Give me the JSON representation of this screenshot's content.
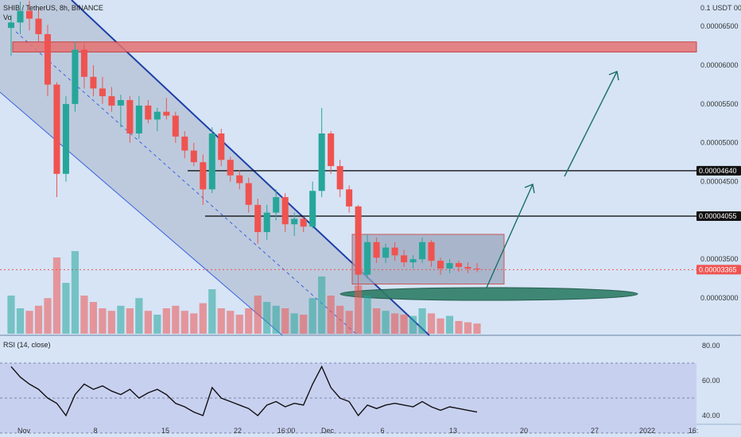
{
  "header": {
    "symbol_line": "SHIB / TetherUS, 8h, BINANCE",
    "vol_label": "Vo"
  },
  "colors": {
    "up": "#26a69a",
    "down": "#ef5350",
    "bg": "#d6e4f6",
    "channel": "#1e3fa8",
    "resistance_zone": "#e57373",
    "support_ellipse": "#2e7d67",
    "arrow": "#1b6e66",
    "rsi": "#111111",
    "rsi_band": "#c6cdf0"
  },
  "chart_data": [
    {
      "type": "candlestick",
      "title": "SHIB / TetherUS, 8h, BINANCE",
      "unit_label": "0.1 USDT 00",
      "price_axis_ticks": [
        "0.00006500",
        "0.00006000",
        "0.00005500",
        "0.00005000",
        "0.00004500",
        "0.00003500",
        "0.00003000"
      ],
      "ylim": [
        2.54e-05,
        6.84e-05
      ],
      "time_axis_ticks": [
        "Nov",
        "8",
        "15",
        "22",
        "16:00",
        "Dec",
        "6",
        "13",
        "20",
        "27",
        "2022",
        "16:"
      ],
      "price_labels": [
        {
          "value": "0.00004640",
          "price": 4.64e-05,
          "style": "dark"
        },
        {
          "value": "0.00004055",
          "price": 4.055e-05,
          "style": "dark"
        },
        {
          "value": "0.00003365",
          "price": 3.365e-05,
          "style": "red"
        }
      ],
      "resistance_zone": [
        6.17e-05,
        6.3e-05
      ],
      "consolidation_box": {
        "price_range": [
          3.18e-05,
          3.82e-05
        ]
      },
      "candles_ohlc_approx": [
        [
          6.48e-05,
          6.65e-05,
          6.12e-05,
          6.55e-05
        ],
        [
          6.55e-05,
          6.82e-05,
          6.4e-05,
          6.7e-05
        ],
        [
          6.7e-05,
          6.83e-05,
          6.45e-05,
          6.6e-05
        ],
        [
          6.6e-05,
          6.72e-05,
          6.3e-05,
          6.4e-05
        ],
        [
          6.4e-05,
          6.52e-05,
          5.6e-05,
          5.75e-05
        ],
        [
          5.75e-05,
          5.78e-05,
          4.3e-05,
          4.6e-05
        ],
        [
          4.6e-05,
          5.6e-05,
          4.5e-05,
          5.5e-05
        ],
        [
          5.5e-05,
          6.3e-05,
          5.4e-05,
          6.2e-05
        ],
        [
          6.2e-05,
          6.28e-05,
          5.7e-05,
          5.85e-05
        ],
        [
          5.85e-05,
          6e-05,
          5.6e-05,
          5.7e-05
        ],
        [
          5.7e-05,
          5.85e-05,
          5.5e-05,
          5.6e-05
        ],
        [
          5.6e-05,
          5.72e-05,
          5.4e-05,
          5.48e-05
        ],
        [
          5.48e-05,
          5.62e-05,
          5.2e-05,
          5.55e-05
        ],
        [
          5.55e-05,
          5.6e-05,
          5e-05,
          5.12e-05
        ],
        [
          5.12e-05,
          5.6e-05,
          5.05e-05,
          5.48e-05
        ],
        [
          5.48e-05,
          5.55e-05,
          5.25e-05,
          5.3e-05
        ],
        [
          5.3e-05,
          5.45e-05,
          5.15e-05,
          5.4e-05
        ],
        [
          5.4e-05,
          5.58e-05,
          5.3e-05,
          5.35e-05
        ],
        [
          5.35e-05,
          5.4e-05,
          5e-05,
          5.08e-05
        ],
        [
          5.08e-05,
          5.15e-05,
          4.8e-05,
          4.9e-05
        ],
        [
          4.9e-05,
          5e-05,
          4.7e-05,
          4.75e-05
        ],
        [
          4.75e-05,
          4.85e-05,
          4.2e-05,
          4.4e-05
        ],
        [
          4.4e-05,
          5.2e-05,
          4.35e-05,
          5.12e-05
        ],
        [
          5.12e-05,
          5.18e-05,
          4.7e-05,
          4.78e-05
        ],
        [
          4.78e-05,
          4.82e-05,
          4.5e-05,
          4.58e-05
        ],
        [
          4.58e-05,
          4.65e-05,
          4.4e-05,
          4.48e-05
        ],
        [
          4.48e-05,
          4.55e-05,
          4.1e-05,
          4.2e-05
        ],
        [
          4.2e-05,
          4.28e-05,
          3.7e-05,
          3.85e-05
        ],
        [
          3.85e-05,
          4.2e-05,
          3.75e-05,
          4.1e-05
        ],
        [
          4.1e-05,
          4.4e-05,
          4e-05,
          4.3e-05
        ],
        [
          4.3e-05,
          4.35e-05,
          3.85e-05,
          3.95e-05
        ],
        [
          3.95e-05,
          4.1e-05,
          3.8e-05,
          4.02e-05
        ],
        [
          4.02e-05,
          4.05e-05,
          3.85e-05,
          3.92e-05
        ],
        [
          3.92e-05,
          4.5e-05,
          3.9e-05,
          4.38e-05
        ],
        [
          4.38e-05,
          5.45e-05,
          4.3e-05,
          5.12e-05
        ],
        [
          5.12e-05,
          5.15e-05,
          4.6e-05,
          4.7e-05
        ],
        [
          4.7e-05,
          4.78e-05,
          4.3e-05,
          4.4e-05
        ],
        [
          4.4e-05,
          4.45e-05,
          4.1e-05,
          4.18e-05
        ],
        [
          4.18e-05,
          4.2e-05,
          3.1e-05,
          3.3e-05
        ],
        [
          3.3e-05,
          3.82e-05,
          3.25e-05,
          3.72e-05
        ],
        [
          3.72e-05,
          3.78e-05,
          3.45e-05,
          3.52e-05
        ],
        [
          3.52e-05,
          3.7e-05,
          3.45e-05,
          3.65e-05
        ],
        [
          3.65e-05,
          3.72e-05,
          3.48e-05,
          3.55e-05
        ],
        [
          3.55e-05,
          3.62e-05,
          3.4e-05,
          3.46e-05
        ],
        [
          3.46e-05,
          3.55e-05,
          3.38e-05,
          3.5e-05
        ],
        [
          3.5e-05,
          3.78e-05,
          3.45e-05,
          3.72e-05
        ],
        [
          3.72e-05,
          3.75e-05,
          3.4e-05,
          3.48e-05
        ],
        [
          3.48e-05,
          3.52e-05,
          3.3e-05,
          3.38e-05
        ],
        [
          3.38e-05,
          3.5e-05,
          3.32e-05,
          3.45e-05
        ],
        [
          3.45e-05,
          3.48e-05,
          3.34e-05,
          3.4e-05
        ],
        [
          3.4e-05,
          3.46e-05,
          3.32e-05,
          3.38e-05
        ],
        [
          3.38e-05,
          3.45e-05,
          3.33e-05,
          3.37e-05
        ]
      ],
      "volume_approx": [
        30,
        20,
        18,
        22,
        28,
        60,
        40,
        65,
        30,
        25,
        20,
        18,
        22,
        20,
        28,
        18,
        15,
        20,
        22,
        18,
        16,
        24,
        35,
        20,
        18,
        15,
        20,
        30,
        25,
        22,
        20,
        16,
        15,
        28,
        45,
        30,
        22,
        18,
        38,
        30,
        20,
        18,
        16,
        15,
        14,
        20,
        16,
        12,
        14,
        10,
        9,
        8
      ]
    },
    {
      "type": "line",
      "title": "RSI (14, close)",
      "ylim": [
        35,
        85
      ],
      "y_ticks": [
        80,
        60,
        40
      ],
      "band": [
        30,
        70
      ],
      "values_approx": [
        68,
        62,
        58,
        55,
        50,
        47,
        40,
        52,
        58,
        55,
        57,
        54,
        52,
        55,
        50,
        53,
        55,
        52,
        47,
        45,
        42,
        40,
        56,
        50,
        48,
        46,
        44,
        40,
        46,
        48,
        45,
        47,
        46,
        58,
        68,
        56,
        50,
        48,
        40,
        46,
        44,
        46,
        47,
        46,
        45,
        48,
        45,
        43,
        45,
        44,
        43,
        42
      ]
    }
  ]
}
